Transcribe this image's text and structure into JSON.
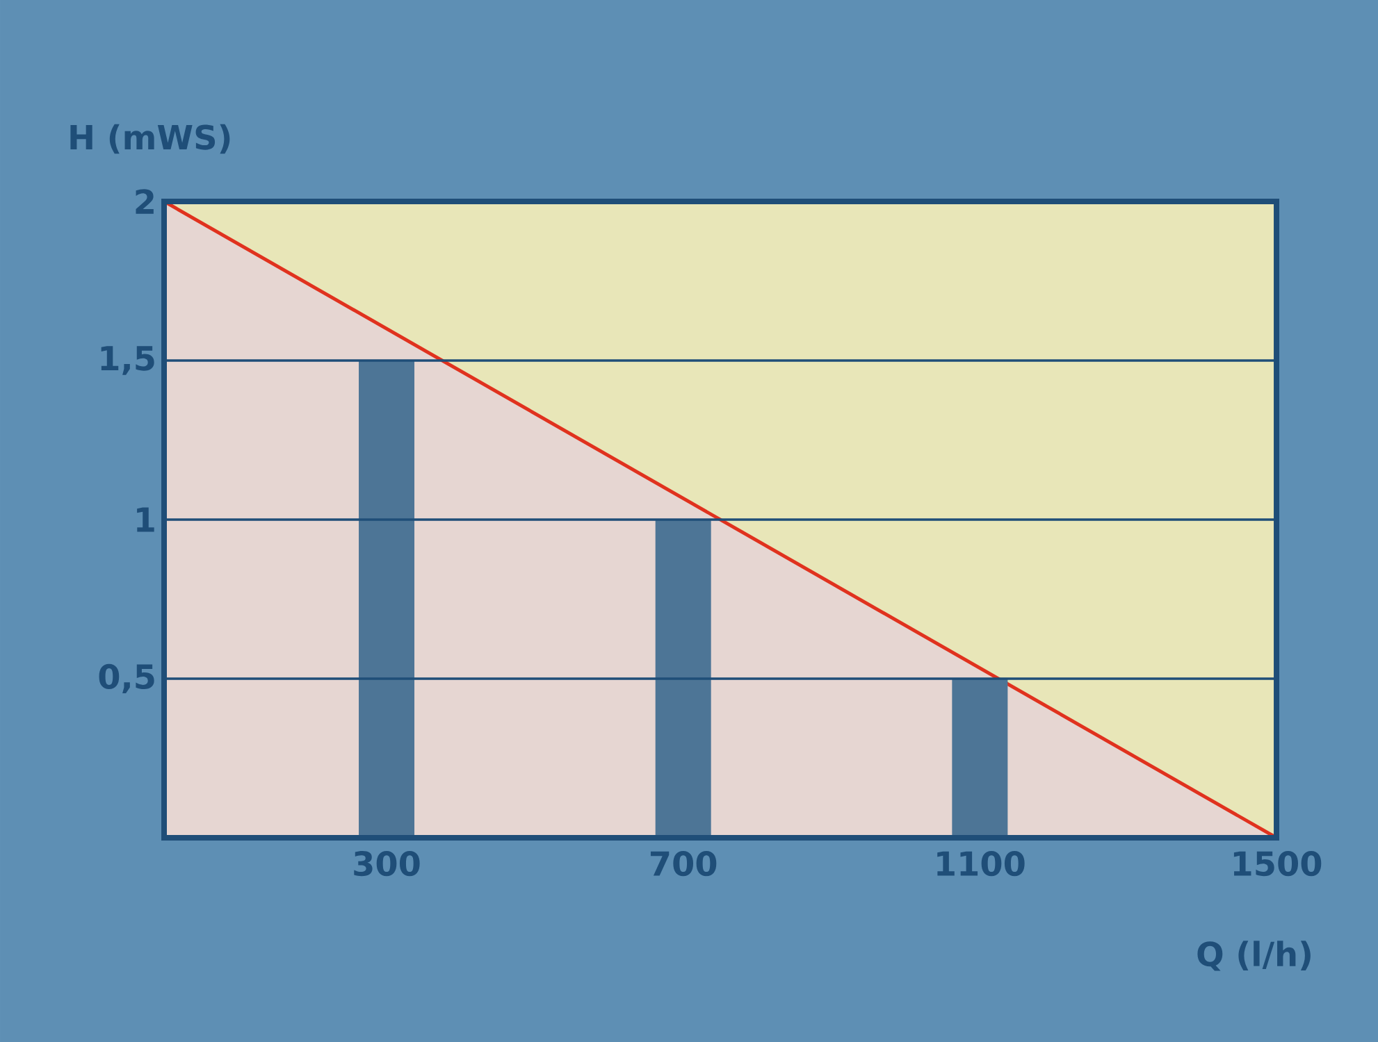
{
  "chart_data": {
    "type": "bar",
    "xlabel": "Q (l/h)",
    "ylabel": "H (mWS)",
    "series": [
      {
        "type": "area",
        "color": "#e0321e",
        "x": [
          0,
          1500
        ],
        "values": [
          2,
          0
        ]
      },
      {
        "color": "#4d7596",
        "x": [
          300,
          700,
          1100
        ],
        "values": [
          1.5,
          1,
          0.5
        ]
      }
    ],
    "xlim": [
      0,
      1500
    ],
    "xticks": [
      300,
      700,
      1100,
      1500
    ],
    "ylim": [
      0,
      2
    ],
    "yticks": [
      {
        "value": 0.5,
        "label": "0,5"
      },
      1,
      {
        "value": 1.5,
        "label": "1,5"
      },
      2
    ],
    "grid": "y"
  }
}
